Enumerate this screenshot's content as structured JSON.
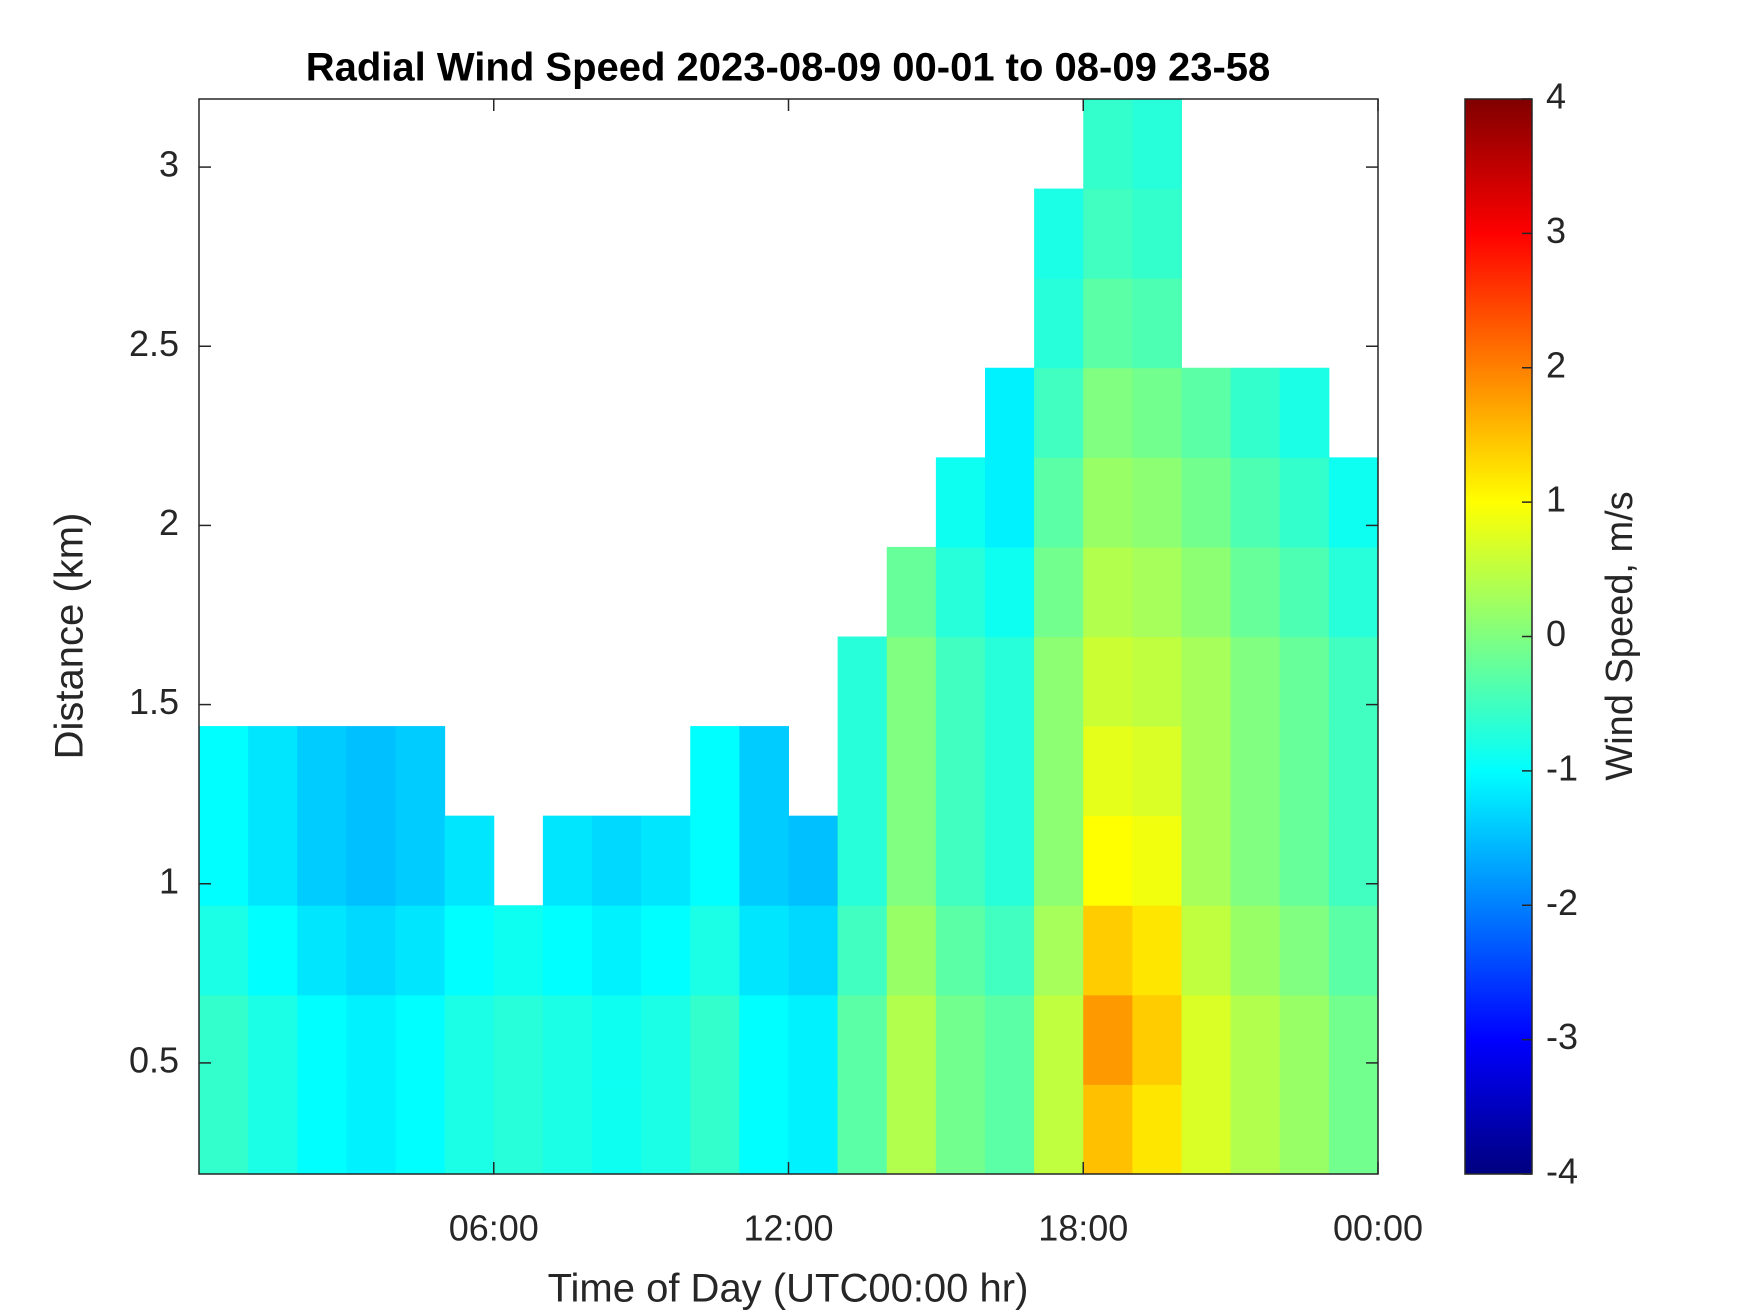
{
  "chart_data": {
    "type": "heatmap",
    "title": "Radial Wind Speed 2023-08-09 00-01 to 08-09 23-58",
    "x_label": "Time of Day (UTC00:00 hr)",
    "y_label": "Distance (km)",
    "colorbar_label": "Wind Speed, m/s",
    "xlim": [
      0,
      24
    ],
    "xticks": [
      {
        "value": 6,
        "label": "06:00"
      },
      {
        "value": 12,
        "label": "12:00"
      },
      {
        "value": 18,
        "label": "18:00"
      },
      {
        "value": 24,
        "label": "00:00"
      }
    ],
    "ylim": [
      0.19,
      3.19
    ],
    "yticks": [
      0.5,
      1,
      1.5,
      2,
      2.5,
      3
    ],
    "clim": [
      -4,
      4
    ],
    "cticks": [
      -4,
      -3,
      -2,
      -1,
      0,
      1,
      2,
      3,
      4
    ],
    "colormap": [
      "#000080",
      "#0000ff",
      "#0080ff",
      "#00ffff",
      "#80ff80",
      "#ffff00",
      "#ff8000",
      "#ff0000",
      "#800000"
    ],
    "xbins": [
      0,
      1,
      2,
      3,
      4,
      5,
      6,
      7,
      8,
      9,
      10,
      11,
      12,
      13,
      14,
      15,
      16,
      17,
      18,
      19,
      20,
      21,
      22,
      23,
      24
    ],
    "ybins": [
      0.19,
      0.44,
      0.69,
      0.94,
      1.19,
      1.44,
      1.69,
      1.94,
      2.19,
      2.44,
      2.69,
      2.94,
      3.19
    ],
    "values": [
      [
        -0.6,
        -0.8,
        -1,
        -1.1,
        -1,
        -0.8,
        -0.7,
        -0.8,
        -0.9,
        -0.8,
        -0.6,
        -1,
        -1.1,
        -0.3,
        0.4,
        -0.1,
        -0.3,
        0.5,
        1.5,
        1.2,
        0.7,
        0.4,
        0.2,
        -0.1
      ],
      [
        -0.6,
        -0.8,
        -1,
        -1.1,
        -1,
        -0.8,
        -0.7,
        -0.8,
        -0.9,
        -0.8,
        -0.6,
        -1,
        -1.1,
        -0.3,
        0.4,
        -0.1,
        -0.3,
        0.5,
        1.8,
        1.4,
        0.7,
        0.4,
        0.2,
        -0.1
      ],
      [
        -0.8,
        -1,
        -1.2,
        -1.3,
        -1.2,
        -1,
        -0.9,
        -1,
        -1.1,
        -1,
        -0.8,
        -1.2,
        -1.3,
        -0.5,
        0.2,
        -0.3,
        -0.5,
        0.3,
        1.4,
        1.2,
        0.5,
        0.2,
        0,
        -0.3
      ],
      [
        -1,
        -1.2,
        -1.4,
        -1.5,
        -1.4,
        -1.2,
        null,
        -1.2,
        -1.3,
        -1.2,
        -1,
        -1.4,
        -1.5,
        -0.7,
        0,
        -0.5,
        -0.7,
        0.1,
        1,
        0.9,
        0.3,
        0,
        -0.2,
        -0.5
      ],
      [
        -1,
        -1.2,
        -1.4,
        -1.5,
        -1.4,
        null,
        null,
        null,
        null,
        null,
        -1,
        -1.4,
        null,
        -0.7,
        0,
        -0.5,
        -0.7,
        0.1,
        0.8,
        0.7,
        0.3,
        0,
        -0.2,
        -0.5
      ],
      [
        null,
        null,
        null,
        null,
        null,
        null,
        null,
        null,
        null,
        null,
        null,
        null,
        null,
        -0.7,
        0,
        -0.5,
        -0.7,
        0.1,
        0.6,
        0.5,
        0.3,
        0,
        -0.2,
        -0.5
      ],
      [
        null,
        null,
        null,
        null,
        null,
        null,
        null,
        null,
        null,
        null,
        null,
        null,
        null,
        null,
        -0.2,
        -0.7,
        -0.9,
        -0.1,
        0.4,
        0.3,
        0.1,
        -0.2,
        -0.4,
        -0.7
      ],
      [
        null,
        null,
        null,
        null,
        null,
        null,
        null,
        null,
        null,
        null,
        null,
        null,
        null,
        null,
        null,
        -0.9,
        -1.1,
        -0.3,
        0.2,
        0.1,
        -0.1,
        -0.4,
        -0.6,
        -0.9
      ],
      [
        null,
        null,
        null,
        null,
        null,
        null,
        null,
        null,
        null,
        null,
        null,
        null,
        null,
        null,
        null,
        null,
        -1.1,
        -0.5,
        0,
        -0.1,
        -0.3,
        -0.6,
        -0.8,
        null
      ],
      [
        null,
        null,
        null,
        null,
        null,
        null,
        null,
        null,
        null,
        null,
        null,
        null,
        null,
        null,
        null,
        null,
        null,
        -0.7,
        -0.3,
        -0.4,
        null,
        null,
        null,
        null
      ],
      [
        null,
        null,
        null,
        null,
        null,
        null,
        null,
        null,
        null,
        null,
        null,
        null,
        null,
        null,
        null,
        null,
        null,
        -0.8,
        -0.5,
        -0.6,
        null,
        null,
        null,
        null
      ],
      [
        null,
        null,
        null,
        null,
        null,
        null,
        null,
        null,
        null,
        null,
        null,
        null,
        null,
        null,
        null,
        null,
        null,
        null,
        -0.6,
        -0.7,
        null,
        null,
        null,
        null
      ]
    ]
  }
}
